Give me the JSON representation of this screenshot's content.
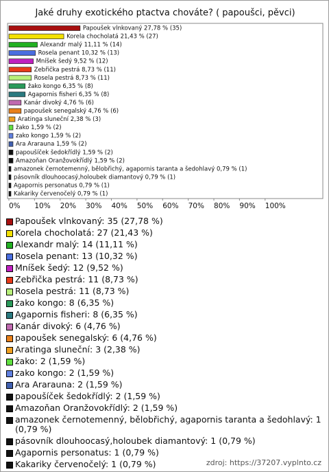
{
  "chart_data": {
    "type": "hbar",
    "title": "Jaké druhy exotického ptactva chováte? ( papoušci, pěvci)",
    "categories": [
      "Papoušek vlnkovaný",
      "Korela chocholatá",
      "Alexandr malý",
      "Rosela penant",
      "Mníšek šedý",
      "Zebřička pestrá",
      "Rosela pestrá",
      "žako kongo",
      "Agapornis fisheri",
      "Kanár divoký",
      "papoušek senegalský",
      "Aratinga sluneční",
      "žako",
      "zako kongo",
      "Ara Ararauna",
      "papoušíček šedokřídlý",
      "Amazoňan Oranžovokřídlý",
      "amazonek černotemenný, bělobřichý, agapornis taranta a šedohlavý",
      "pásovník dlouhoocasý,holoubek diamantový",
      "Agapornis personatus",
      "Kakariky červenočelý"
    ],
    "values": [
      27.78,
      21.43,
      11.11,
      10.32,
      9.52,
      8.73,
      8.73,
      6.35,
      6.35,
      4.76,
      4.76,
      2.38,
      1.59,
      1.59,
      1.59,
      1.59,
      1.59,
      0.79,
      0.79,
      0.79,
      0.79
    ],
    "value_labels": [
      "Papoušek vlnkovaný 27,78 % (35)",
      "Korela chocholatá 21,43 % (27)",
      "Alexandr malý 11,11 % (14)",
      "Rosela penant 10,32 % (13)",
      "Mníšek šedý 9,52 % (12)",
      "Zebřička pestrá 8,73 % (11)",
      "Rosela pestrá 8,73 % (11)",
      "žako kongo 6,35 % (8)",
      "Agapornis fisheri 6,35 % (8)",
      "Kanár divoký 4,76 % (6)",
      "papoušek senegalský 4,76 % (6)",
      "Aratinga sluneční 2,38 % (3)",
      "žako 1,59 % (2)",
      "zako kongo 1,59 % (2)",
      "Ara Ararauna 1,59 % (2)",
      "papoušíček šedokřídlý 1,59 % (2)",
      "Amazoňan Oranžovokřídlý 1,59 % (2)",
      "amazonek černotemenný, bělobřichý, agapornis taranta a šedohlavý 0,79 % (1)",
      "pásovník dlouhoocasý,holoubek diamantový 0,79 % (1)",
      "Agapornis personatus 0,79 % (1)",
      "Kakariky červenočelý 0,79 % (1)"
    ],
    "legend_labels": [
      "Papoušek vlnkovaný: 35 (27,78 %)",
      "Korela chocholatá: 27 (21,43 %)",
      "Alexandr malý: 14 (11,11 %)",
      "Rosela penant: 13 (10,32 %)",
      "Mníšek šedý: 12 (9,52 %)",
      "Zebřička pestrá: 11 (8,73 %)",
      "Rosela pestrá: 11 (8,73 %)",
      "žako kongo: 8 (6,35 %)",
      "Agapornis fisheri: 8 (6,35 %)",
      "Kanár divoký: 6 (4,76 %)",
      "papoušek senegalský: 6 (4,76 %)",
      "Aratinga sluneční: 3 (2,38 %)",
      "žako: 2 (1,59 %)",
      "zako kongo: 2 (1,59 %)",
      "Ara Ararauna: 2 (1,59 %)",
      "papoušíček šedokřídlý: 2 (1,59 %)",
      "Amazoňan Oranžovokřídlý: 2 (1,59 %)",
      "amazonek černotemenný, bělobřichý, agapornis taranta a šedohlavý: 1 (0,79 %)",
      "pásovník dlouhoocasý,holoubek diamantový: 1 (0,79 %)",
      "Agapornis personatus: 1 (0,79 %)",
      "Kakariky červenočelý: 1 (0,79 %)"
    ],
    "colors": [
      "#a81010",
      "#f2e000",
      "#22b022",
      "#4a6ee0",
      "#c020c0",
      "#e83a1a",
      "#b8f07a",
      "#2a9a5a",
      "#2a7a80",
      "#c06ab0",
      "#e8801a",
      "#f0a020",
      "#60e040",
      "#6080e0",
      "#4060b0",
      "#111111",
      "#111111",
      "#111111",
      "#111111",
      "#111111",
      "#111111"
    ],
    "xlim": [
      0,
      122
    ],
    "xticks": [
      {
        "value": 0,
        "label": "0%"
      },
      {
        "value": 10,
        "label": "10%"
      },
      {
        "value": 20,
        "label": "20%"
      },
      {
        "value": 30,
        "label": "30%"
      },
      {
        "value": 40,
        "label": "40%"
      },
      {
        "value": 50,
        "label": "50%"
      },
      {
        "value": 60,
        "label": "60%"
      },
      {
        "value": 70,
        "label": "70%"
      },
      {
        "value": 80,
        "label": "80%"
      },
      {
        "value": 90,
        "label": "90%"
      },
      {
        "value": 100,
        "label": "100%"
      }
    ],
    "source": "zdroj: https://37207.vyplnto.cz"
  }
}
